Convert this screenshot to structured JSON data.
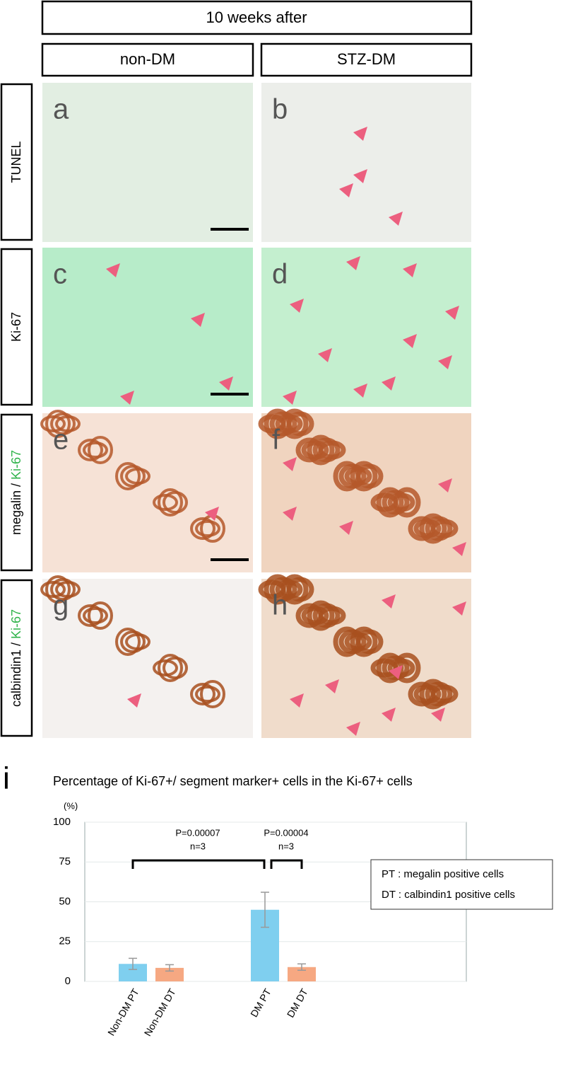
{
  "header": "10 weeks after",
  "columns": [
    "non-DM",
    "STZ-DM"
  ],
  "rows": [
    {
      "label": "TUNEL",
      "panels": [
        "a",
        "b"
      ]
    },
    {
      "label": "Ki-67",
      "panels": [
        "c",
        "d"
      ]
    },
    {
      "label": "megalin / ",
      "label_green": "Ki-67",
      "panels": [
        "e",
        "f"
      ]
    },
    {
      "label": "calbindin1 / ",
      "label_green": "Ki-67",
      "panels": [
        "g",
        "h"
      ]
    }
  ],
  "chart_data": {
    "type": "bar",
    "panel_letter": "i",
    "title": "Percentage of Ki-67+/ segment marker+ cells in the Ki-67+ cells",
    "y_unit": "(%)",
    "categories": [
      "Non-DM PT",
      "Non-DM DT",
      "DM PT",
      "DM DT"
    ],
    "values": [
      11,
      8.5,
      45,
      9
    ],
    "errors": [
      3.5,
      2,
      11,
      2
    ],
    "colors": [
      "#7fcfef",
      "#f6a882",
      "#7fcfef",
      "#f6a882"
    ],
    "ylim": [
      0,
      100
    ],
    "yticks": [
      0,
      25,
      50,
      75,
      100
    ],
    "grid": true,
    "annotations": [
      {
        "p": "P=0.00007",
        "n": "n=3"
      },
      {
        "p": "P=0.00004",
        "n": "n=3"
      }
    ],
    "legend": [
      "PT : megalin positive cells",
      "DT : calbindin1 positive cells"
    ]
  }
}
